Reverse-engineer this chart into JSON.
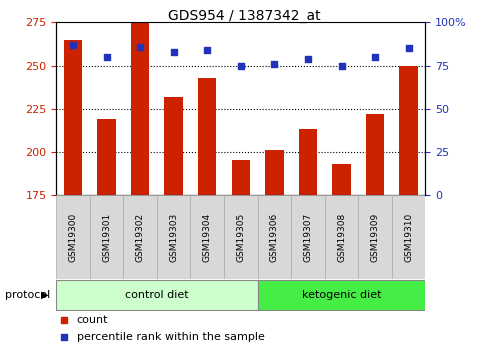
{
  "title": "GDS954 / 1387342_at",
  "samples": [
    "GSM19300",
    "GSM19301",
    "GSM19302",
    "GSM19303",
    "GSM19304",
    "GSM19305",
    "GSM19306",
    "GSM19307",
    "GSM19308",
    "GSM19309",
    "GSM19310"
  ],
  "counts": [
    265,
    219,
    276,
    232,
    243,
    195,
    201,
    213,
    193,
    222,
    250
  ],
  "percentile_ranks": [
    87,
    80,
    86,
    83,
    84,
    75,
    76,
    79,
    75,
    80,
    85
  ],
  "ylim_left": [
    175,
    275
  ],
  "ylim_right": [
    0,
    100
  ],
  "yticks_left": [
    175,
    200,
    225,
    250,
    275
  ],
  "yticks_right": [
    0,
    25,
    50,
    75,
    100
  ],
  "bar_color": "#cc2200",
  "dot_color": "#2233bb",
  "control_color": "#ccffcc",
  "ketogenic_color": "#44ee44",
  "label_bg_color": "#d8d8d8",
  "protocol_label": "protocol",
  "control_label": "control diet",
  "ketogenic_label": "ketogenic diet",
  "legend_count": "count",
  "legend_percentile": "percentile rank within the sample",
  "n_control": 6,
  "n_keto": 5,
  "figsize": [
    4.89,
    3.45
  ],
  "dpi": 100
}
